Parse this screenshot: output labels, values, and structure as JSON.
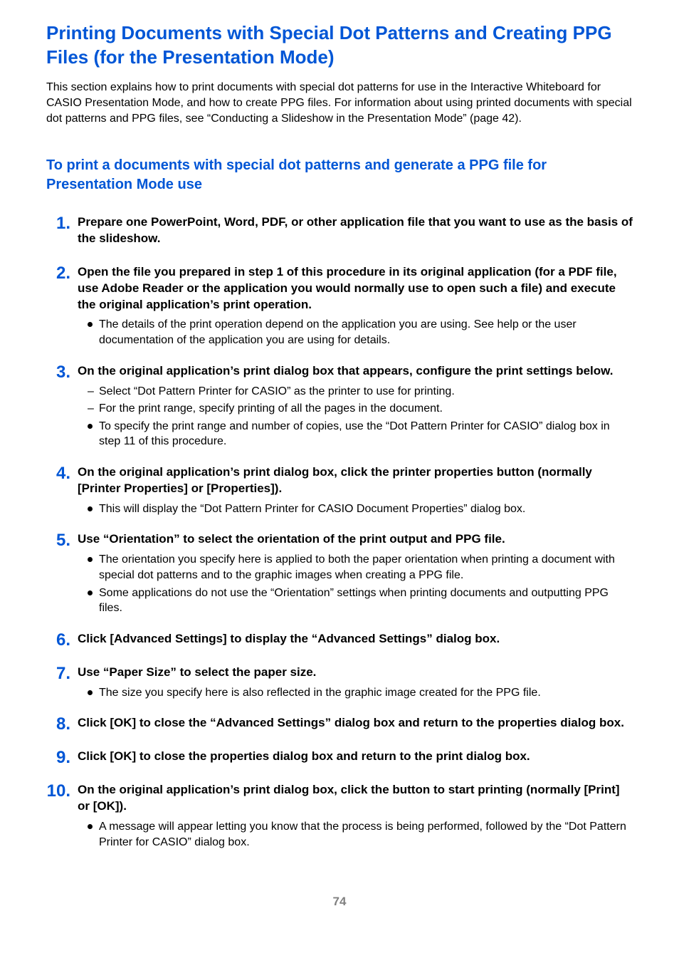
{
  "colors": {
    "accent": "#0056d6",
    "body_text": "#000000",
    "page_num": "#808080",
    "background": "#ffffff"
  },
  "typography": {
    "main_title_fontsize": 26,
    "sub_title_fontsize": 20,
    "step_num_fontsize": 24,
    "step_head_fontsize": 17,
    "body_fontsize": 16
  },
  "main_title": "Printing Documents with Special Dot Patterns and Creating PPG Files (for the Presentation Mode)",
  "intro": "This section explains how to print documents with special dot patterns for use in the Interactive Whiteboard for CASIO Presentation Mode, and how to create PPG files. For information about using printed documents with special dot patterns and PPG files, see “Conducting a Slideshow in the Presentation Mode” (page 42).",
  "sub_title": "To print a documents with special dot patterns and generate a PPG file for Presentation Mode use",
  "steps": [
    {
      "num": "1.",
      "head": "Prepare one PowerPoint, Word, PDF, or other application file that you want to use as the basis of the slideshow.",
      "subs": []
    },
    {
      "num": "2.",
      "head": "Open the file you prepared in step 1 of this procedure in its original application (for a PDF file, use Adobe Reader or the application you would normally use to open such a file) and execute the original application’s print operation.",
      "subs": [
        {
          "marker": "bullet",
          "text": "The details of the print operation depend on the application you are using. See help or the user documentation of the application you are using for details."
        }
      ]
    },
    {
      "num": "3.",
      "head": "On the original application’s print dialog box that appears, configure the print settings below.",
      "subs": [
        {
          "marker": "dash",
          "text": "Select “Dot Pattern Printer for CASIO” as the printer to use for printing."
        },
        {
          "marker": "dash",
          "text": "For the print range, specify printing of all the pages in the document."
        },
        {
          "marker": "bullet",
          "text": "To specify the print range and number of copies, use the “Dot Pattern Printer for CASIO” dialog box in step 11 of this procedure."
        }
      ]
    },
    {
      "num": "4.",
      "head": "On the original application’s print dialog box, click the printer properties button (normally [Printer Properties] or [Properties]).",
      "subs": [
        {
          "marker": "bullet",
          "text": "This will display the “Dot Pattern Printer for CASIO Document Properties” dialog box."
        }
      ]
    },
    {
      "num": "5.",
      "head": "Use “Orientation” to select the orientation of the print output and PPG file.",
      "subs": [
        {
          "marker": "bullet",
          "text": "The orientation you specify here is applied to both the paper orientation when printing a document with special dot patterns and to the graphic images when creating a PPG file."
        },
        {
          "marker": "bullet",
          "text": "Some applications do not use the “Orientation” settings when printing documents and outputting PPG files."
        }
      ]
    },
    {
      "num": "6.",
      "head": "Click [Advanced Settings] to display the “Advanced Settings” dialog box.",
      "subs": []
    },
    {
      "num": "7.",
      "head": "Use “Paper Size” to select the paper size.",
      "subs": [
        {
          "marker": "bullet",
          "text": "The size you specify here is also reflected in the graphic image created for the PPG file."
        }
      ]
    },
    {
      "num": "8.",
      "head": "Click [OK] to close the “Advanced Settings” dialog box and return to the properties dialog box.",
      "subs": []
    },
    {
      "num": "9.",
      "head": "Click [OK] to close the properties dialog box and return to the print dialog box.",
      "subs": []
    },
    {
      "num": "10.",
      "head": "On the original application’s print dialog box, click the button to start printing (normally [Print] or [OK]).",
      "subs": [
        {
          "marker": "bullet",
          "text": "A message will appear letting you know that the process is being performed, followed by the “Dot Pattern Printer for CASIO” dialog box."
        }
      ]
    }
  ],
  "page_number": "74"
}
